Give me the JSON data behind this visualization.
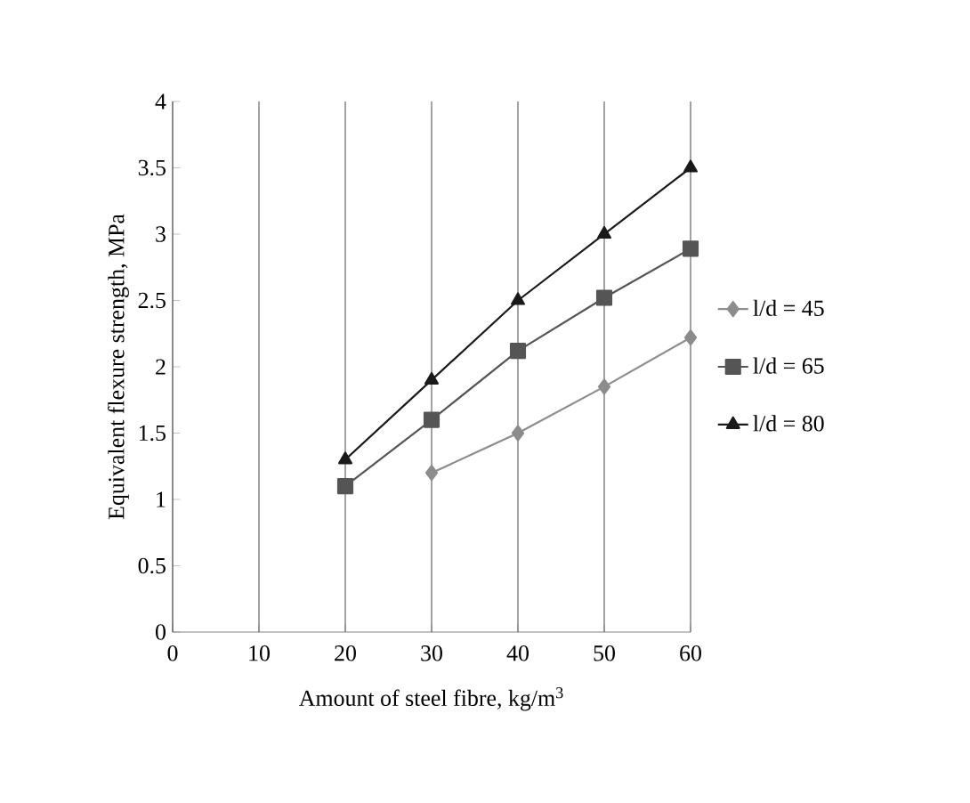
{
  "chart_data": {
    "type": "line",
    "xlabel": "Amount of steel fibre, kg/m$^{3}$",
    "ylabel": "Equivalent flexure strength, MPa",
    "xlim": [
      0,
      60
    ],
    "xticks": [
      0,
      10,
      20,
      30,
      40,
      50,
      60
    ],
    "ylim": [
      0,
      4
    ],
    "yticks": [
      0,
      0.5,
      1,
      1.5,
      2,
      2.5,
      3,
      3.5,
      4
    ],
    "grid": "x",
    "legend": "right",
    "series": [
      {
        "name": "l/d = 45",
        "color": "#8c8c8c",
        "marker": "diamond",
        "x": [
          30,
          40,
          50,
          60
        ],
        "values": [
          1.2,
          1.5,
          1.85,
          2.22
        ]
      },
      {
        "name": "l/d = 65",
        "color": "#555555",
        "marker": "square",
        "x": [
          20,
          30,
          40,
          50,
          60
        ],
        "values": [
          1.1,
          1.6,
          2.12,
          2.52,
          2.89
        ]
      },
      {
        "name": "l/d = 80",
        "color": "#1a1a1a",
        "marker": "triangle",
        "x": [
          20,
          30,
          40,
          50,
          60
        ],
        "values": [
          1.3,
          1.9,
          2.5,
          3.0,
          3.5
        ]
      }
    ]
  }
}
